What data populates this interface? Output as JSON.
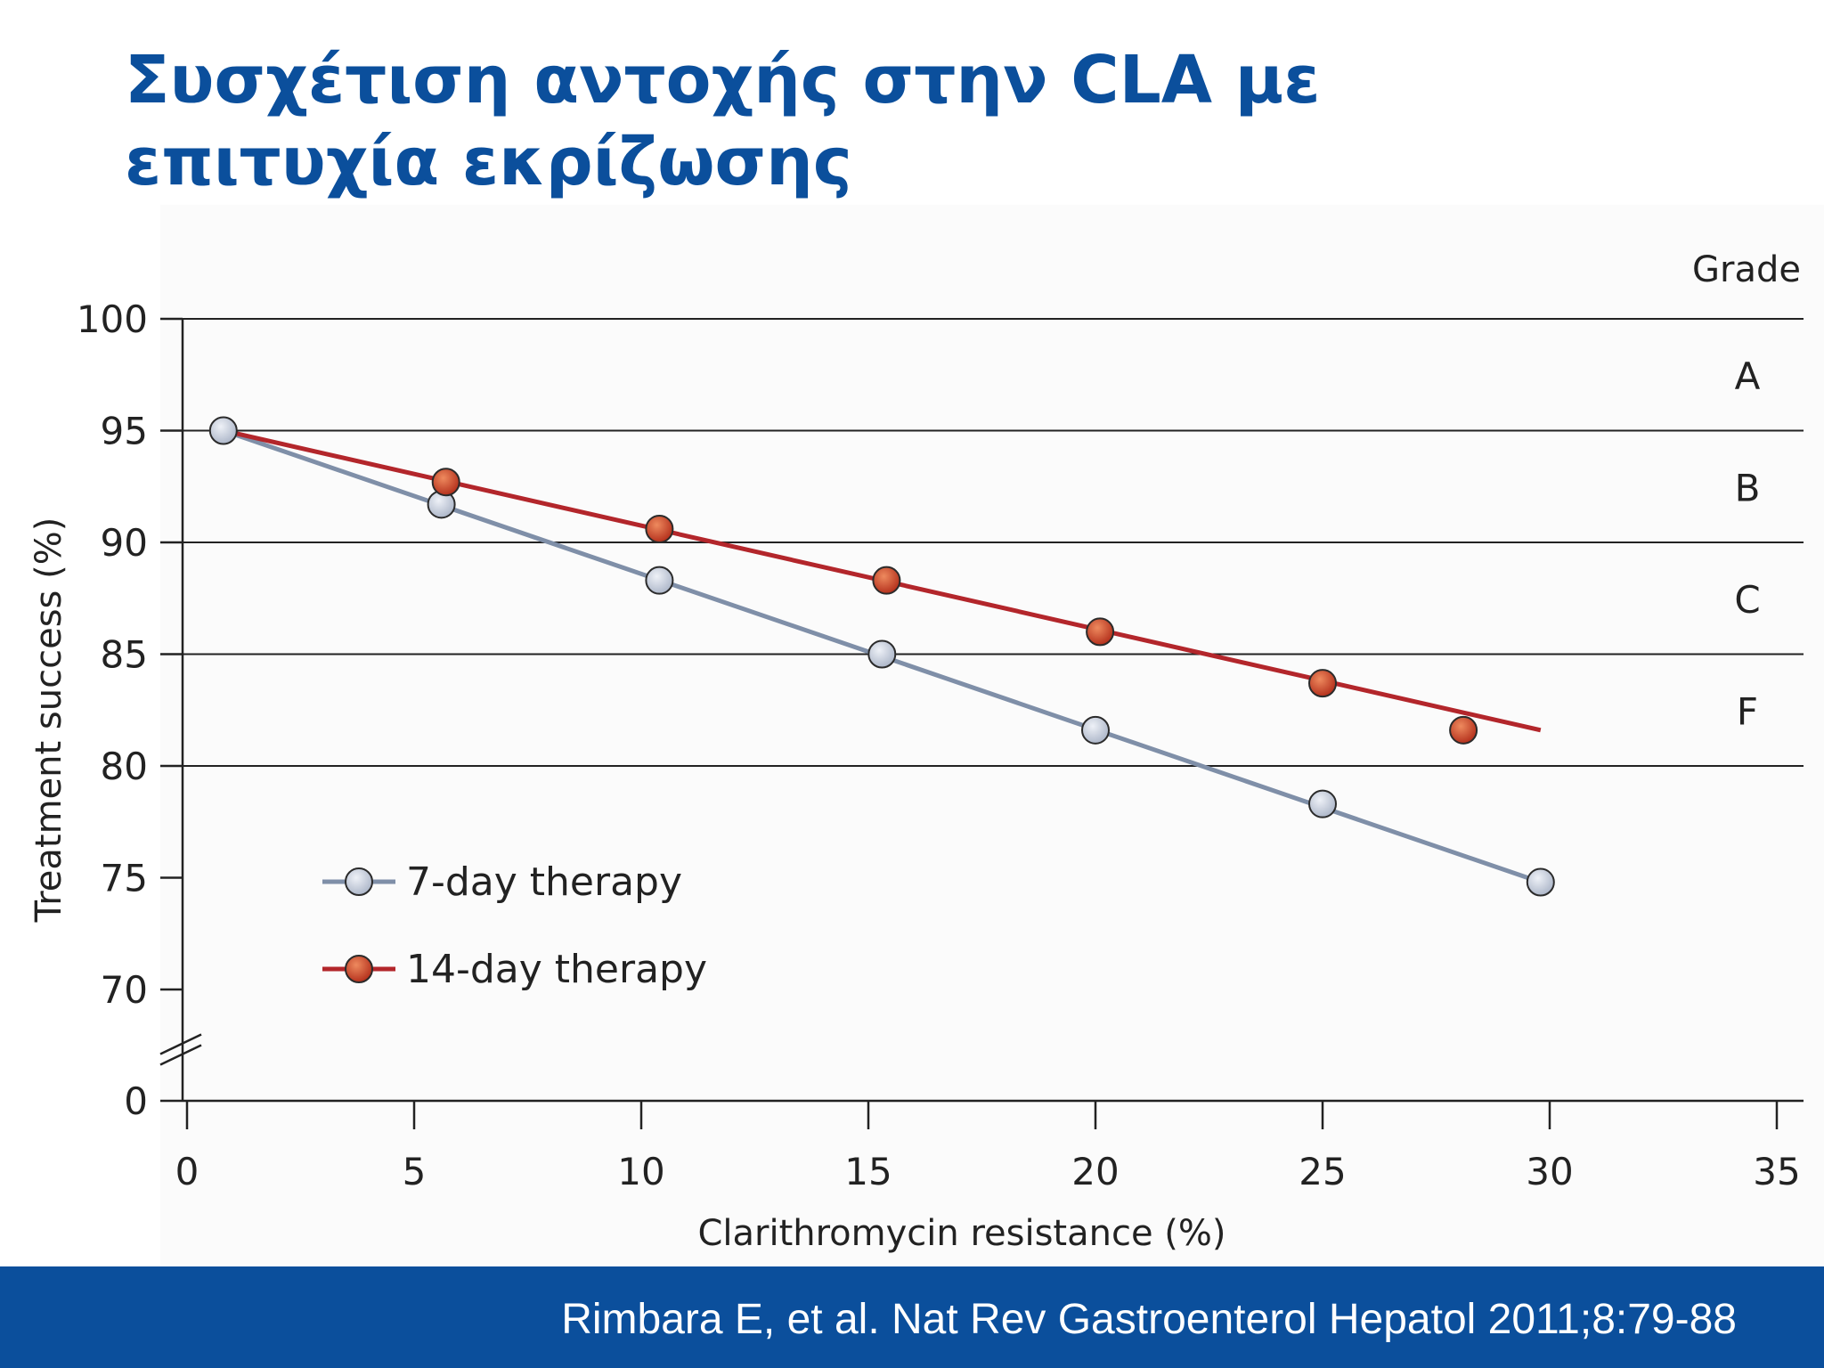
{
  "slide": {
    "title": "Συσχέτιση αντοχής στην CLA με επιτυχία εκρίζωσης",
    "footer": "Rimbara E, et al. Nat Rev Gastroenterol Hepatol 2011;8:79-88"
  },
  "chart_data": {
    "type": "line",
    "title": "",
    "xlabel": "Clarithromycin resistance (%)",
    "ylabel": "Treatment success (%)",
    "xlim": [
      0,
      35
    ],
    "ylim": [
      70,
      100
    ],
    "x_ticks": [
      "0",
      "5",
      "10",
      "15",
      "20",
      "25",
      "30",
      "35"
    ],
    "y_ticks": [
      "0",
      "70",
      "75",
      "80",
      "85",
      "90",
      "95",
      "100"
    ],
    "y_axis_break": true,
    "grade_header": "Grade",
    "grades": [
      {
        "label": "A",
        "from": 95,
        "to": 100
      },
      {
        "label": "B",
        "from": 90,
        "to": 95
      },
      {
        "label": "C",
        "from": 85,
        "to": 90
      },
      {
        "label": "F",
        "from": 80,
        "to": 85
      }
    ],
    "legend_position": "bottom-left",
    "series": [
      {
        "name": "7-day therapy",
        "color": "#7f8fa8",
        "marker_color": "#c4cbd9",
        "points": [
          [
            0.8,
            95.0
          ],
          [
            5.6,
            91.7
          ],
          [
            10.4,
            88.3
          ],
          [
            15.3,
            85.0
          ],
          [
            20.0,
            81.6
          ],
          [
            25.0,
            78.3
          ],
          [
            29.8,
            74.8
          ]
        ],
        "line": [
          [
            0.8,
            95.0
          ],
          [
            29.8,
            74.8
          ]
        ]
      },
      {
        "name": "14-day therapy",
        "color": "#b3262b",
        "marker_color": "#cc4a2c",
        "points": [
          [
            5.7,
            92.7
          ],
          [
            10.4,
            90.6
          ],
          [
            15.4,
            88.3
          ],
          [
            20.1,
            86.0
          ],
          [
            25.0,
            83.7
          ],
          [
            28.1,
            81.6
          ]
        ],
        "line": [
          [
            0.8,
            95.0
          ],
          [
            29.8,
            81.6
          ]
        ]
      }
    ]
  }
}
